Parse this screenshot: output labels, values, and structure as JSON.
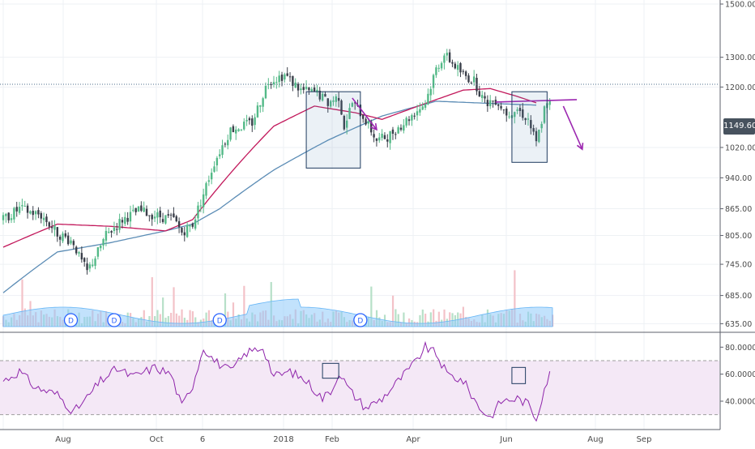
{
  "chart_data": {
    "type": "candlestick",
    "symbol_last_price": "1149.60",
    "price_axis": {
      "scale": "log",
      "ticks": [
        "1500.00",
        "1300.00",
        "1200.00",
        "1020.00",
        "940.00",
        "865.00",
        "805.00",
        "745.00",
        "685.00",
        "635.00"
      ],
      "range": [
        630,
        1500
      ]
    },
    "time_axis": {
      "ticks": [
        "Aug",
        "Oct",
        "6",
        "2018",
        "Feb",
        "Apr",
        "Jun",
        "Aug",
        "Sep"
      ]
    },
    "dividend_markers": [
      "D",
      "D",
      "D",
      "D"
    ],
    "price_series": {
      "close_anchors": [
        [
          0,
          840
        ],
        [
          6,
          865
        ],
        [
          14,
          850
        ],
        [
          20,
          810
        ],
        [
          26,
          790
        ],
        [
          28,
          760
        ],
        [
          31,
          730
        ],
        [
          34,
          760
        ],
        [
          38,
          805
        ],
        [
          44,
          840
        ],
        [
          50,
          860
        ],
        [
          56,
          850
        ],
        [
          63,
          840
        ],
        [
          66,
          812
        ],
        [
          70,
          830
        ],
        [
          74,
          900
        ],
        [
          78,
          980
        ],
        [
          84,
          1070
        ],
        [
          92,
          1090
        ],
        [
          98,
          1220
        ],
        [
          104,
          1240
        ],
        [
          110,
          1190
        ],
        [
          116,
          1180
        ],
        [
          120,
          1150
        ],
        [
          124,
          1170
        ],
        [
          126,
          1080
        ],
        [
          129,
          1150
        ],
        [
          133,
          1110
        ],
        [
          138,
          1040
        ],
        [
          142,
          1050
        ],
        [
          148,
          1090
        ],
        [
          152,
          1120
        ],
        [
          156,
          1150
        ],
        [
          160,
          1260
        ],
        [
          163,
          1310
        ],
        [
          166,
          1280
        ],
        [
          170,
          1240
        ],
        [
          174,
          1220
        ],
        [
          178,
          1150
        ],
        [
          182,
          1160
        ],
        [
          186,
          1120
        ],
        [
          190,
          1130
        ],
        [
          194,
          1100
        ],
        [
          197,
          1030
        ],
        [
          200,
          1130
        ],
        [
          202,
          1149.6
        ]
      ],
      "ma50_anchors": [
        [
          0,
          780
        ],
        [
          20,
          830
        ],
        [
          40,
          825
        ],
        [
          60,
          815
        ],
        [
          70,
          840
        ],
        [
          80,
          920
        ],
        [
          100,
          1080
        ],
        [
          115,
          1140
        ],
        [
          130,
          1120
        ],
        [
          140,
          1100
        ],
        [
          150,
          1130
        ],
        [
          160,
          1160
        ],
        [
          170,
          1190
        ],
        [
          180,
          1195
        ],
        [
          190,
          1170
        ],
        [
          197,
          1150
        ]
      ],
      "ma200_anchors": [
        [
          0,
          690
        ],
        [
          20,
          770
        ],
        [
          40,
          790
        ],
        [
          60,
          815
        ],
        [
          70,
          830
        ],
        [
          80,
          865
        ],
        [
          100,
          960
        ],
        [
          120,
          1040
        ],
        [
          140,
          1110
        ],
        [
          160,
          1155
        ],
        [
          175,
          1150
        ],
        [
          197,
          1143
        ]
      ]
    },
    "rsi": {
      "ticks": [
        "80.0000",
        "60.0000",
        "40.0000"
      ],
      "upper": 70,
      "lower": 30,
      "anchors": [
        [
          0,
          55
        ],
        [
          6,
          62
        ],
        [
          12,
          50
        ],
        [
          20,
          45
        ],
        [
          26,
          32
        ],
        [
          30,
          40
        ],
        [
          36,
          55
        ],
        [
          42,
          64
        ],
        [
          48,
          58
        ],
        [
          56,
          65
        ],
        [
          62,
          60
        ],
        [
          66,
          36
        ],
        [
          70,
          52
        ],
        [
          74,
          80
        ],
        [
          78,
          70
        ],
        [
          84,
          62
        ],
        [
          90,
          76
        ],
        [
          96,
          80
        ],
        [
          100,
          58
        ],
        [
          106,
          62
        ],
        [
          112,
          55
        ],
        [
          118,
          42
        ],
        [
          122,
          50
        ],
        [
          124,
          62
        ],
        [
          128,
          48
        ],
        [
          134,
          35
        ],
        [
          140,
          42
        ],
        [
          146,
          55
        ],
        [
          152,
          68
        ],
        [
          156,
          80
        ],
        [
          160,
          75
        ],
        [
          164,
          60
        ],
        [
          170,
          55
        ],
        [
          176,
          35
        ],
        [
          180,
          28
        ],
        [
          184,
          40
        ],
        [
          190,
          42
        ],
        [
          194,
          38
        ],
        [
          197,
          27
        ],
        [
          200,
          50
        ],
        [
          202,
          60
        ]
      ]
    },
    "annotations": {
      "resistance_line": 1160,
      "boxes": [
        [
          112,
          132,
          965,
          1185
        ],
        [
          188,
          201,
          980,
          1185
        ]
      ],
      "rsi_boxes": [
        [
          118,
          124,
          57,
          68
        ],
        [
          188,
          193,
          53,
          65
        ]
      ]
    },
    "colors": {
      "up": "#53b987",
      "down": "#3a3f4a",
      "ma50": "#c2185b",
      "ma200": "#5b8cb5",
      "rsi": "#8e24aa",
      "rsi_band": "#f3e5f5",
      "annotation": "#9c27b0",
      "box": "#1e3a5f",
      "volume_area": "#90caf9"
    }
  }
}
